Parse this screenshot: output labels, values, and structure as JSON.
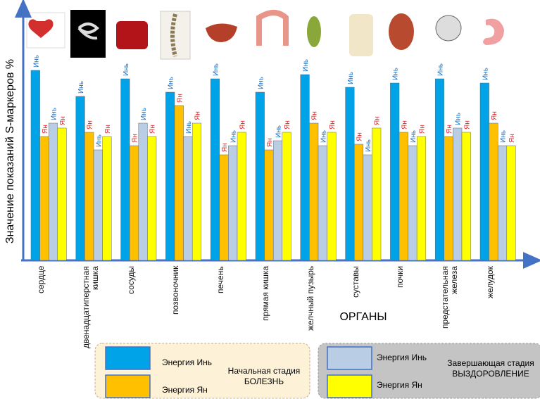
{
  "chart_data": {
    "type": "bar",
    "y_label": "Значение показаний S-маркеров %",
    "x_label": "ОРГАНЫ",
    "categories": [
      "сердце",
      "двенадцатиперстная кишка",
      "сосуды",
      "позвоночник",
      "печень",
      "прямая кишка",
      "желчный пузырь",
      "суставы",
      "почки",
      "предстательная железа",
      "желудок"
    ],
    "ylim": [
      0,
      358
    ],
    "series": [
      {
        "name": "Энергия Инь",
        "short_label": "Инь",
        "color": "#00a2e8",
        "label_color": "#1a6fc4",
        "values": [
          270,
          233,
          258,
          239,
          258,
          239,
          264,
          246,
          252,
          258,
          252
        ]
      },
      {
        "name": "Энергия Ян",
        "short_label": "Ян",
        "color": "#ffc000",
        "label_color": "#e0282c",
        "values": [
          176,
          182,
          163,
          220,
          150,
          157,
          195,
          165,
          182,
          176,
          195
        ]
      },
      {
        "name": "Энергия Инь",
        "short_label": "Инь",
        "color": "#b9cde5",
        "label_color": "#1a6fc4",
        "values": [
          195,
          157,
          195,
          176,
          163,
          170,
          163,
          150,
          163,
          188,
          163
        ]
      },
      {
        "name": "Энергия Ян",
        "short_label": "Ян",
        "color": "#ffff00",
        "label_color": "#e0282c",
        "values": [
          188,
          176,
          176,
          195,
          182,
          182,
          182,
          188,
          176,
          182,
          163
        ]
      }
    ],
    "legend_groups": [
      {
        "title": "Начальная стадия",
        "subtitle": "БОЛЕЗНЬ"
      },
      {
        "title": "Завершающая стадия",
        "subtitle": "ВЫЗДОРОВЛЕНИЕ"
      }
    ]
  }
}
